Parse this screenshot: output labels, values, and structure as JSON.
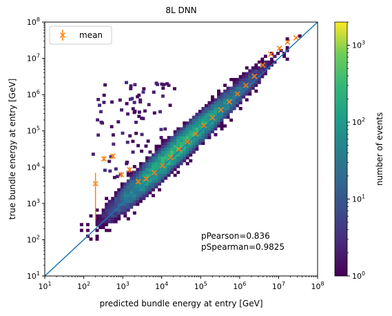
{
  "chart_data": {
    "type": "heatmap",
    "title": "8L DNN",
    "xlabel": "predicted bundle energy at entry [GeV]",
    "ylabel": "true bundle energy at entry [GeV]",
    "x_scale": "log",
    "y_scale": "log",
    "xlim": [
      10,
      100000000
    ],
    "ylim": [
      10,
      100000000
    ],
    "x_ticks": [
      {
        "value": 10,
        "base": "10",
        "exp": "1"
      },
      {
        "value": 100,
        "base": "10",
        "exp": "2"
      },
      {
        "value": 1000,
        "base": "10",
        "exp": "3"
      },
      {
        "value": 10000,
        "base": "10",
        "exp": "4"
      },
      {
        "value": 100000,
        "base": "10",
        "exp": "5"
      },
      {
        "value": 1000000,
        "base": "10",
        "exp": "6"
      },
      {
        "value": 10000000,
        "base": "10",
        "exp": "7"
      },
      {
        "value": 100000000,
        "base": "10",
        "exp": "8"
      }
    ],
    "y_ticks": [
      {
        "value": 10,
        "base": "10",
        "exp": "1"
      },
      {
        "value": 100,
        "base": "10",
        "exp": "2"
      },
      {
        "value": 1000,
        "base": "10",
        "exp": "3"
      },
      {
        "value": 10000,
        "base": "10",
        "exp": "4"
      },
      {
        "value": 100000,
        "base": "10",
        "exp": "5"
      },
      {
        "value": 1000000,
        "base": "10",
        "exp": "6"
      },
      {
        "value": 10000000,
        "base": "10",
        "exp": "7"
      },
      {
        "value": 100000000,
        "base": "10",
        "exp": "8"
      }
    ],
    "colorbar": {
      "label": "number of events",
      "scale": "log",
      "range": [
        1,
        2000
      ],
      "ticks": [
        {
          "value": 1,
          "base": "10",
          "exp": "0"
        },
        {
          "value": 10,
          "base": "10",
          "exp": "1"
        },
        {
          "value": 100,
          "base": "10",
          "exp": "2"
        },
        {
          "value": 1000,
          "base": "10",
          "exp": "3"
        }
      ],
      "colormap": "viridis"
    },
    "diagonal_line": {
      "from": [
        10,
        10
      ],
      "to": [
        100000000,
        100000000
      ],
      "color": "#1f77b4"
    },
    "mean_series": {
      "name": "mean",
      "color": "#ff7f0e",
      "marker": "x",
      "points": [
        {
          "x": 200,
          "y": 3500,
          "y_low": 350,
          "y_high": 7000
        },
        {
          "x": 330,
          "y": 17000,
          "y_low": 14500,
          "y_high": 20500
        },
        {
          "x": 560,
          "y": 20000,
          "y_low": 17000,
          "y_high": 23500
        },
        {
          "x": 920,
          "y": 6200,
          "y_low": 5200,
          "y_high": 7400
        },
        {
          "x": 1500,
          "y": 8500,
          "y_low": 7000,
          "y_high": 10200
        },
        {
          "x": 2500,
          "y": 4000,
          "y_low": 3600,
          "y_high": 4400
        },
        {
          "x": 4000,
          "y": 4800,
          "y_low": 4400,
          "y_high": 5300
        },
        {
          "x": 6500,
          "y": 7000,
          "y_low": 6500,
          "y_high": 7600
        },
        {
          "x": 10500,
          "y": 11000,
          "y_low": 10400,
          "y_high": 11700
        },
        {
          "x": 17000,
          "y": 18500,
          "y_low": 17600,
          "y_high": 19400
        },
        {
          "x": 28000,
          "y": 31000,
          "y_low": 29500,
          "y_high": 32500
        },
        {
          "x": 46000,
          "y": 50000,
          "y_low": 47500,
          "y_high": 52500
        },
        {
          "x": 75000,
          "y": 82000,
          "y_low": 78000,
          "y_high": 86000
        },
        {
          "x": 120000,
          "y": 140000,
          "y_low": 133000,
          "y_high": 147000
        },
        {
          "x": 200000,
          "y": 230000,
          "y_low": 218000,
          "y_high": 242000
        },
        {
          "x": 330000,
          "y": 380000,
          "y_low": 360000,
          "y_high": 400000
        },
        {
          "x": 540000,
          "y": 630000,
          "y_low": 600000,
          "y_high": 660000
        },
        {
          "x": 880000,
          "y": 1050000,
          "y_low": 1000000,
          "y_high": 1100000
        },
        {
          "x": 1450000,
          "y": 1800000,
          "y_low": 1700000,
          "y_high": 1900000
        },
        {
          "x": 2400000,
          "y": 3200000,
          "y_low": 3000000,
          "y_high": 3400000
        },
        {
          "x": 3900000,
          "y": 6500000,
          "y_low": 6100000,
          "y_high": 6900000
        },
        {
          "x": 6300000,
          "y": 13000000,
          "y_low": 12000000,
          "y_high": 14000000
        },
        {
          "x": 10500000,
          "y": 19000000,
          "y_low": 17500000,
          "y_high": 20500000
        },
        {
          "x": 17000000,
          "y": 28000000,
          "y_low": 26000000,
          "y_high": 30000000
        },
        {
          "x": 28000000,
          "y": 37000000,
          "y_low": 35000000,
          "y_high": 39000000
        }
      ]
    },
    "legend": {
      "entries": [
        "mean"
      ],
      "position": "top-left"
    },
    "annotations": [
      "pPearson=0.836",
      "pSpearman=0.9825"
    ]
  }
}
